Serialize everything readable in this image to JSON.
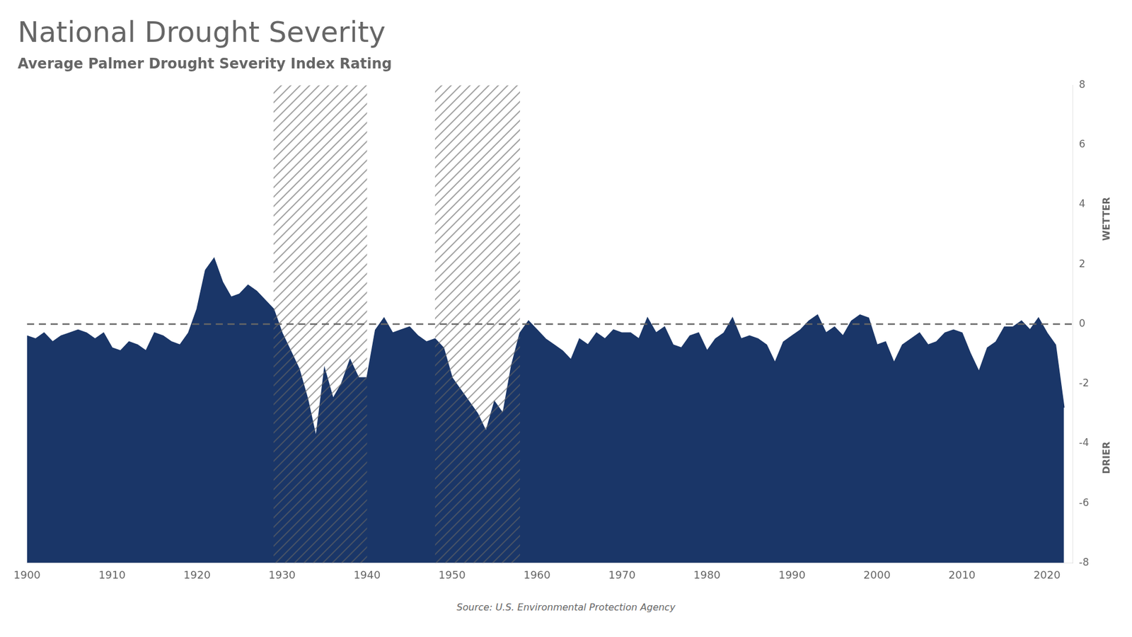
{
  "chart_data": {
    "type": "area",
    "title": "National Drought Severity",
    "subtitle": "Average Palmer Drought Severity Index Rating",
    "source": "Source: U.S. Environmental Protection Agency",
    "annotations": [
      {
        "text": "WETTER"
      },
      {
        "text": "DRIER"
      }
    ],
    "x": [
      1900,
      1901,
      1902,
      1903,
      1904,
      1905,
      1906,
      1907,
      1908,
      1909,
      1910,
      1911,
      1912,
      1913,
      1914,
      1915,
      1916,
      1917,
      1918,
      1919,
      1920,
      1921,
      1922,
      1923,
      1924,
      1925,
      1926,
      1927,
      1928,
      1929,
      1930,
      1931,
      1932,
      1933,
      1934,
      1935,
      1936,
      1937,
      1938,
      1939,
      1940,
      1941,
      1942,
      1943,
      1944,
      1945,
      1946,
      1947,
      1948,
      1949,
      1950,
      1951,
      1952,
      1953,
      1954,
      1955,
      1956,
      1957,
      1958,
      1959,
      1960,
      1961,
      1962,
      1963,
      1964,
      1965,
      1966,
      1967,
      1968,
      1969,
      1970,
      1971,
      1972,
      1973,
      1974,
      1975,
      1976,
      1977,
      1978,
      1979,
      1980,
      1981,
      1982,
      1983,
      1984,
      1985,
      1986,
      1987,
      1988,
      1989,
      1990,
      1991,
      1992,
      1993,
      1994,
      1995,
      1996,
      1997,
      1998,
      1999,
      2000,
      2001,
      2002,
      2003,
      2004,
      2005,
      2006,
      2007,
      2008,
      2009,
      2010,
      2011,
      2012,
      2013,
      2014,
      2015,
      2016,
      2017,
      2018,
      2019,
      2020,
      2021,
      2022
    ],
    "values": [
      -0.4,
      -0.5,
      -0.3,
      -0.6,
      -0.4,
      -0.3,
      -0.2,
      -0.3,
      -0.5,
      -0.3,
      -0.8,
      -0.9,
      -0.6,
      -0.7,
      -0.9,
      -0.3,
      -0.4,
      -0.6,
      -0.7,
      -0.3,
      0.5,
      1.8,
      2.2,
      1.4,
      0.9,
      1.0,
      1.3,
      1.1,
      0.8,
      0.5,
      -0.3,
      -0.9,
      -1.5,
      -2.5,
      -3.8,
      -1.5,
      -2.5,
      -2.0,
      -1.2,
      -1.8,
      -1.8,
      -0.2,
      0.2,
      -0.3,
      -0.2,
      -0.1,
      -0.4,
      -0.6,
      -0.5,
      -0.8,
      -1.8,
      -2.2,
      -2.6,
      -3.0,
      -3.6,
      -2.6,
      -3.0,
      -1.4,
      -0.3,
      0.1,
      -0.2,
      -0.5,
      -0.7,
      -0.9,
      -1.2,
      -0.5,
      -0.7,
      -0.3,
      -0.5,
      -0.2,
      -0.3,
      -0.3,
      -0.5,
      0.2,
      -0.3,
      -0.1,
      -0.7,
      -0.8,
      -0.4,
      -0.3,
      -0.9,
      -0.5,
      -0.3,
      0.2,
      -0.5,
      -0.4,
      -0.5,
      -0.7,
      -1.3,
      -0.6,
      -0.4,
      -0.2,
      0.1,
      0.3,
      -0.3,
      -0.1,
      -0.4,
      0.1,
      0.3,
      0.2,
      -0.7,
      -0.6,
      -1.3,
      -0.7,
      -0.5,
      -0.3,
      -0.7,
      -0.6,
      -0.3,
      -0.2,
      -0.3,
      -1.0,
      -1.6,
      -0.8,
      -0.6,
      -0.1,
      -0.1,
      0.1,
      -0.2,
      0.2,
      -0.3,
      -0.7,
      -2.8
    ],
    "color": "#1a3668",
    "xlim": [
      1900,
      2023
    ],
    "ylim": [
      -8,
      8
    ],
    "xticks": [
      1900,
      1910,
      1920,
      1930,
      1940,
      1950,
      1960,
      1970,
      1980,
      1990,
      2000,
      2010,
      2020
    ],
    "yticks": [
      -8,
      -6,
      -4,
      -2,
      0,
      2,
      4,
      6,
      8
    ],
    "grid": false,
    "hlines": [
      0
    ],
    "highlight_ranges": [
      [
        1929,
        1940
      ],
      [
        1948,
        1958
      ]
    ]
  }
}
